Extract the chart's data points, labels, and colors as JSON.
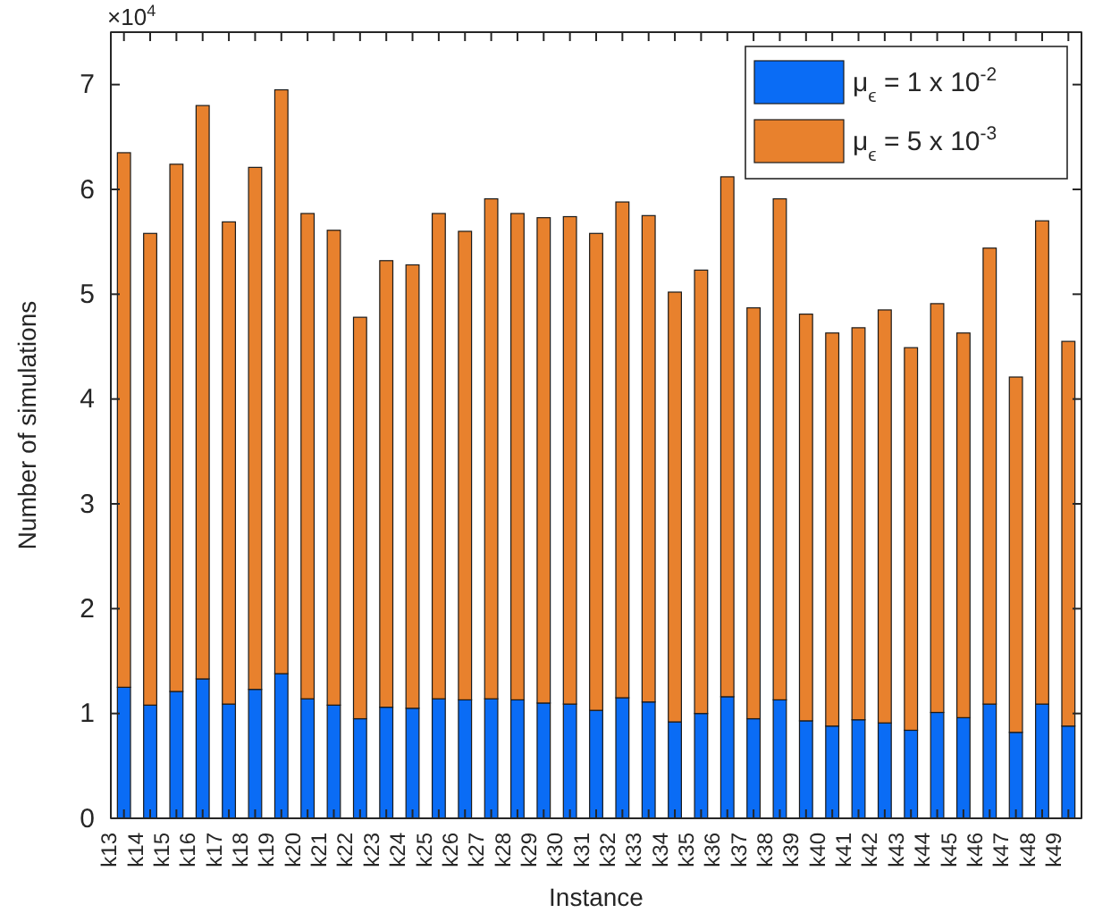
{
  "chart_data": {
    "type": "bar",
    "stacked": true,
    "xlabel": "Instance",
    "ylabel": "Number of simulations",
    "annotations": [
      "×10$^{4}$"
    ],
    "categories": [
      "k13",
      "k14",
      "k15",
      "k16",
      "k17",
      "k18",
      "k19",
      "k20",
      "k21",
      "k22",
      "k23",
      "k24",
      "k25",
      "k26",
      "k27",
      "k28",
      "k29",
      "k30",
      "k31",
      "k32",
      "k33",
      "k34",
      "k35",
      "k36",
      "k37",
      "k38",
      "k39",
      "k40",
      "k41",
      "k42",
      "k43",
      "k44",
      "k45",
      "k46",
      "k47",
      "k48",
      "k49"
    ],
    "series": [
      {
        "name": "μ$_{ϵ}$ = 1 x 10$^{-2}$",
        "color": "#0a6cf5",
        "values": [
          1.25,
          1.08,
          1.21,
          1.33,
          1.09,
          1.23,
          1.38,
          1.14,
          1.08,
          0.95,
          1.06,
          1.05,
          1.14,
          1.13,
          1.14,
          1.13,
          1.1,
          1.09,
          1.03,
          1.15,
          1.11,
          0.92,
          1.0,
          1.16,
          0.95,
          1.13,
          0.93,
          0.88,
          0.94,
          0.91,
          0.84,
          1.01,
          0.96,
          1.09,
          0.82,
          1.09,
          0.88
        ]
      },
      {
        "name": "μ$_{ϵ}$ = 5 x 10$^{-3}$",
        "color": "#e8812d",
        "values": [
          5.1,
          4.5,
          5.03,
          5.47,
          4.6,
          4.98,
          5.57,
          4.63,
          4.53,
          3.83,
          4.26,
          4.23,
          4.63,
          4.47,
          4.77,
          4.64,
          4.63,
          4.65,
          4.55,
          4.73,
          4.64,
          4.1,
          4.23,
          4.96,
          3.92,
          4.78,
          3.88,
          3.75,
          3.74,
          3.94,
          3.65,
          3.9,
          3.67,
          4.35,
          3.39,
          4.61,
          3.67
        ]
      }
    ],
    "ylim": [
      0,
      7.5
    ],
    "yticks": [
      0,
      1,
      2,
      3,
      4,
      5,
      6,
      7
    ],
    "grid": false,
    "legend": "top right"
  }
}
